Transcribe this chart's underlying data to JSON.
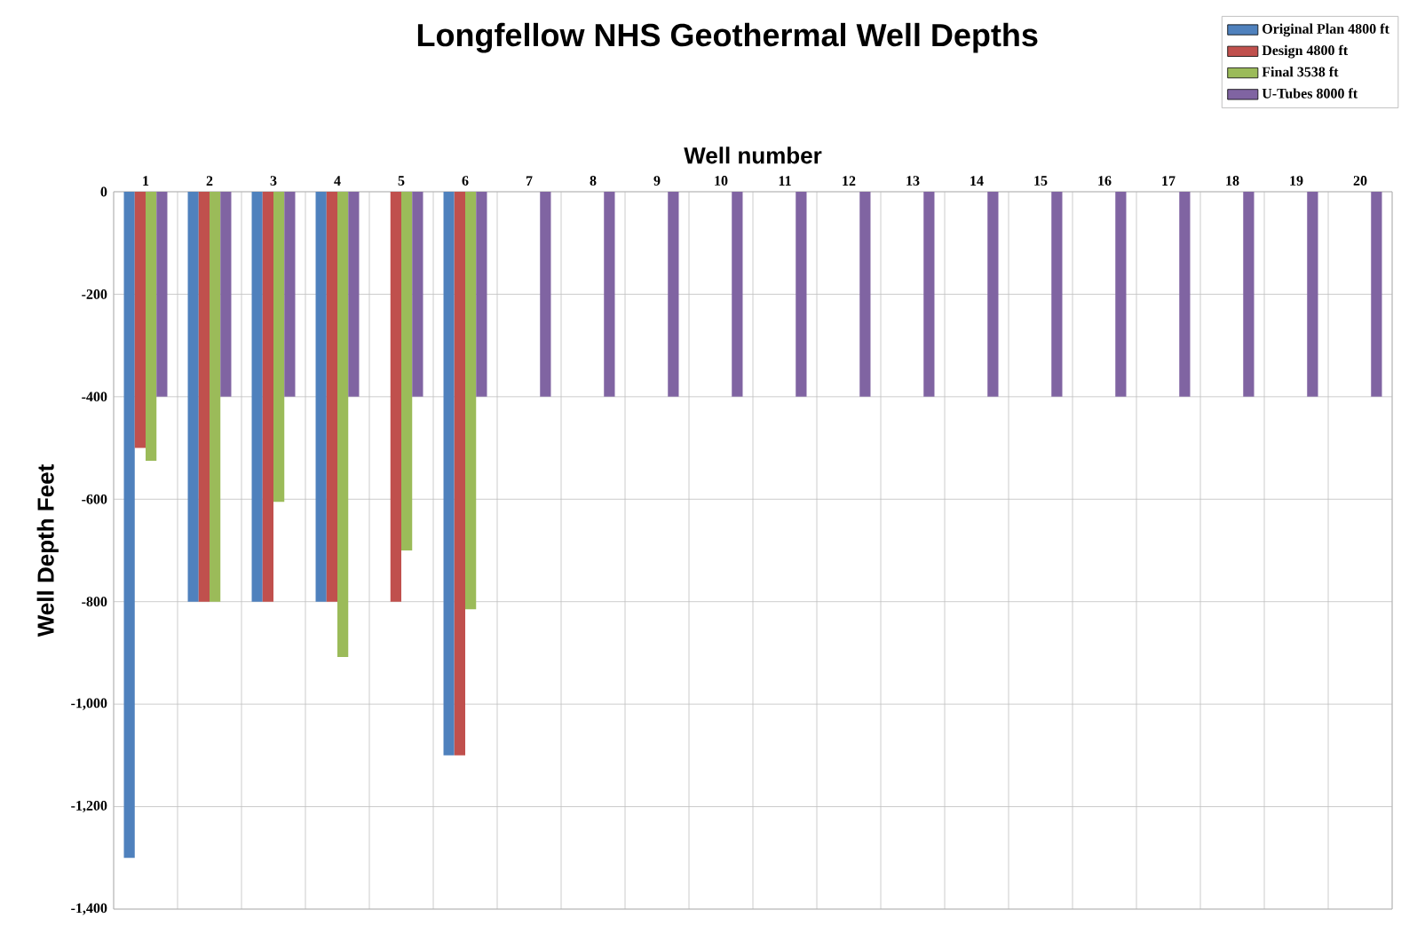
{
  "chart_data": {
    "type": "bar",
    "title": "Longfellow NHS Geothermal Well Depths",
    "xlabel": "Well number",
    "ylabel": "Well Depth Feet",
    "categories": [
      "1",
      "2",
      "3",
      "4",
      "5",
      "6",
      "7",
      "8",
      "9",
      "10",
      "11",
      "12",
      "13",
      "14",
      "15",
      "16",
      "17",
      "18",
      "19",
      "20"
    ],
    "series": [
      {
        "name": "Original Plan 4800 ft",
        "color": "#4f81bd",
        "values": [
          -1300,
          -800,
          -800,
          -800,
          null,
          -1100,
          null,
          null,
          null,
          null,
          null,
          null,
          null,
          null,
          null,
          null,
          null,
          null,
          null,
          null
        ]
      },
      {
        "name": "Design 4800 ft",
        "color": "#c0504d",
        "values": [
          -500,
          -800,
          -800,
          -800,
          -800,
          -1100,
          null,
          null,
          null,
          null,
          null,
          null,
          null,
          null,
          null,
          null,
          null,
          null,
          null,
          null
        ]
      },
      {
        "name": "Final 3538 ft",
        "color": "#9bbb59",
        "values": [
          -525,
          -800,
          -605,
          -908,
          -700,
          -815,
          null,
          null,
          null,
          null,
          null,
          null,
          null,
          null,
          null,
          null,
          null,
          null,
          null,
          null
        ]
      },
      {
        "name": "U-Tubes 8000 ft",
        "color": "#8064a2",
        "values": [
          -400,
          -400,
          -400,
          -400,
          -400,
          -400,
          -400,
          -400,
          -400,
          -400,
          -400,
          -400,
          -400,
          -400,
          -400,
          -400,
          -400,
          -400,
          -400,
          -400
        ]
      }
    ],
    "ylim": [
      -1400,
      0
    ],
    "yticks": [
      {
        "value": -1400,
        "label": "-1,400"
      },
      {
        "value": -1200,
        "label": "-1,200"
      },
      {
        "value": -1000,
        "label": "-1,000"
      },
      -800,
      -600,
      -400,
      -200,
      0
    ],
    "grid": true,
    "legend": "top right"
  }
}
